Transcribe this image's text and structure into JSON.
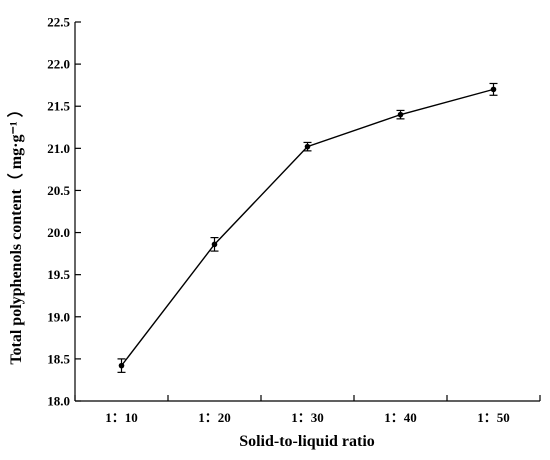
{
  "chart_data": {
    "type": "line",
    "xlabel": "Solid-to-liquid ratio",
    "ylabel": "Total polyphenols content（ mg·g⁻¹ ）",
    "categories": [
      "1：10",
      "1：20",
      "1：30",
      "1：40",
      "1：50"
    ],
    "series": [
      {
        "values": [
          18.42,
          19.86,
          21.02,
          21.4,
          21.7
        ],
        "errors": [
          0.08,
          0.08,
          0.05,
          0.05,
          0.07
        ]
      }
    ],
    "ylim": [
      18.0,
      22.5
    ],
    "yticks": [
      "18.0",
      "18.5",
      "19.0",
      "19.5",
      "20.0",
      "20.5",
      "21.0",
      "21.5",
      "22.0",
      "22.5"
    ],
    "grid": false,
    "line_color": "#000000"
  }
}
